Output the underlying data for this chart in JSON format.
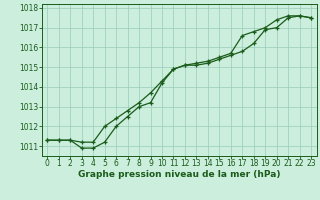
{
  "xlabel": "Graphe pression niveau de la mer (hPa)",
  "background_color": "#cceedd",
  "grid_color": "#99ccbb",
  "line_color": "#1a5c1a",
  "x_values": [
    0,
    1,
    2,
    3,
    4,
    5,
    6,
    7,
    8,
    9,
    10,
    11,
    12,
    13,
    14,
    15,
    16,
    17,
    18,
    19,
    20,
    21,
    22,
    23
  ],
  "line1_y": [
    1011.3,
    1011.3,
    1011.3,
    1010.9,
    1010.9,
    1011.2,
    1012.0,
    1012.5,
    1013.0,
    1013.2,
    1014.2,
    1014.9,
    1015.1,
    1015.1,
    1015.2,
    1015.4,
    1015.6,
    1015.8,
    1016.2,
    1016.9,
    1017.0,
    1017.5,
    1017.6,
    1017.5
  ],
  "line2_y": [
    1011.3,
    1011.3,
    1011.3,
    1011.2,
    1011.2,
    1012.0,
    1012.4,
    1012.8,
    1013.2,
    1013.7,
    1014.3,
    1014.9,
    1015.1,
    1015.2,
    1015.3,
    1015.5,
    1015.7,
    1016.6,
    1016.8,
    1017.0,
    1017.4,
    1017.6,
    1017.6,
    1017.5
  ],
  "ylim_min": 1010.5,
  "ylim_max": 1018.2,
  "xlim_min": -0.5,
  "xlim_max": 23.5,
  "yticks": [
    1011,
    1012,
    1013,
    1014,
    1015,
    1016,
    1017,
    1018
  ],
  "xticks": [
    0,
    1,
    2,
    3,
    4,
    5,
    6,
    7,
    8,
    9,
    10,
    11,
    12,
    13,
    14,
    15,
    16,
    17,
    18,
    19,
    20,
    21,
    22,
    23
  ],
  "tick_fontsize": 5.5,
  "xlabel_fontsize": 6.5,
  "linewidth": 0.9,
  "markersize": 3.5
}
